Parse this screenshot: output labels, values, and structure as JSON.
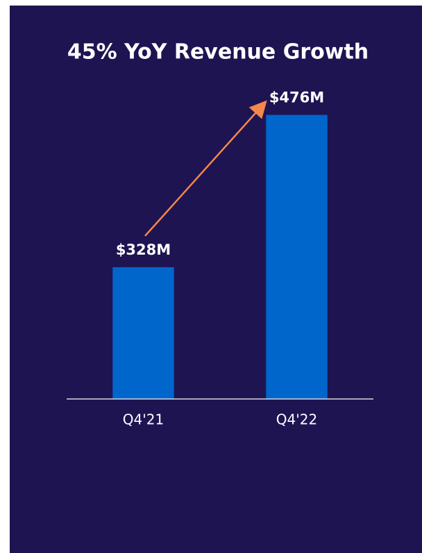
{
  "chart_data": {
    "type": "bar",
    "title": "45% YoY Revenue Growth",
    "categories": [
      "Q4'21",
      "Q4'22"
    ],
    "values": [
      328,
      476
    ],
    "value_labels": [
      "$328M",
      "$476M"
    ],
    "color": "#0066cc",
    "ylim": [
      200,
      500
    ]
  }
}
